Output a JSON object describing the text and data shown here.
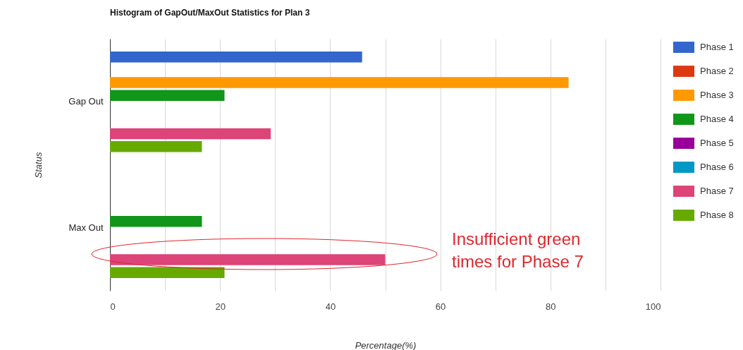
{
  "chart_data": {
    "type": "bar",
    "orientation": "horizontal",
    "title": "Histogram of GapOut/MaxOut Statistics for Plan 3",
    "xlabel": "Percentage(%)",
    "ylabel": "Status",
    "categories": [
      "Gap Out",
      "Max Out"
    ],
    "series": [
      {
        "name": "Phase 1",
        "color": "#3366cc",
        "values": [
          45.8,
          0
        ]
      },
      {
        "name": "Phase 2",
        "color": "#dc3912",
        "values": [
          0,
          0
        ]
      },
      {
        "name": "Phase 3",
        "color": "#ff9900",
        "values": [
          83.3,
          0
        ]
      },
      {
        "name": "Phase 4",
        "color": "#109618",
        "values": [
          20.8,
          16.7
        ]
      },
      {
        "name": "Phase 5",
        "color": "#990099",
        "values": [
          0,
          0
        ]
      },
      {
        "name": "Phase 6",
        "color": "#0099c6",
        "values": [
          0,
          0
        ]
      },
      {
        "name": "Phase 7",
        "color": "#dd4477",
        "values": [
          29.2,
          50
        ]
      },
      {
        "name": "Phase 8",
        "color": "#66aa00",
        "values": [
          16.7,
          20.8
        ]
      }
    ],
    "xlim": [
      0,
      100
    ],
    "xticks": [
      0,
      {
        "value": 10,
        "label": null
      },
      20,
      {
        "value": 30,
        "label": null
      },
      40,
      {
        "value": 50,
        "label": null
      },
      60,
      {
        "value": 70,
        "label": null
      },
      80,
      {
        "value": 90,
        "label": null
      },
      100
    ],
    "grid": true,
    "legend": "right",
    "annotations": [
      "Insufficient green\ntimes for Phase 7"
    ]
  }
}
